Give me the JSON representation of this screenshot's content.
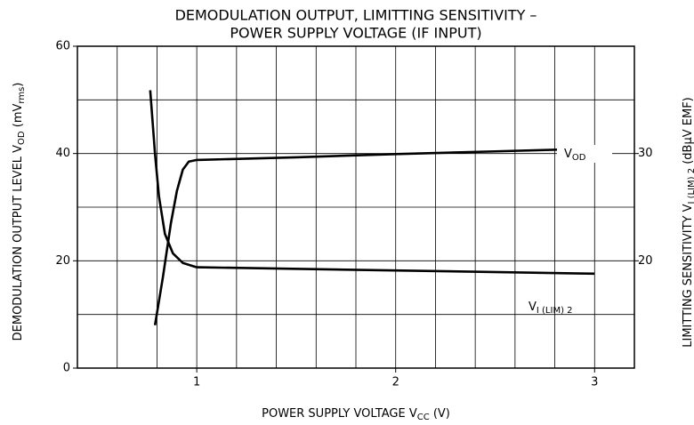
{
  "chart_data": {
    "type": "line",
    "title": [
      "DEMODULATION OUTPUT, LIMITTING SENSITIVITY  –",
      "POWER SUPPLY VOLTAGE (IF INPUT)"
    ],
    "xlabel": [
      "POWER SUPPLY VOLTAGE   V",
      "CC",
      "   (V)"
    ],
    "ylabel": [
      "DEMODULATION OUTPUT LEVEL   V",
      "OD",
      "   (mV",
      "rms",
      ")"
    ],
    "y2label": [
      "LIMITTING SENSITIVITY   V",
      "I (LIM) 2",
      "   (dBμV EMF)"
    ],
    "xlim": [
      0.4,
      3.2
    ],
    "xticks": [
      1,
      2,
      3
    ],
    "xgrid": [
      0.6,
      0.8,
      1.0,
      1.2,
      1.4,
      1.6,
      1.8,
      2.0,
      2.2,
      2.4,
      2.6,
      2.8,
      3.0
    ],
    "ylim": [
      0,
      60
    ],
    "yticks": [
      0,
      20,
      40,
      60
    ],
    "ygrid": [
      10,
      20,
      30,
      40,
      50
    ],
    "y2lim": [
      10,
      40
    ],
    "y2ticks": [
      20,
      30
    ],
    "grid": true,
    "series": [
      {
        "name": [
          "V",
          "OD"
        ],
        "color": "#000000",
        "x": [
          0.79,
          0.83,
          0.87,
          0.9,
          0.93,
          0.96,
          1.0,
          1.5,
          2.0,
          2.5,
          3.0
        ],
        "values": [
          8,
          17,
          27,
          33,
          37,
          38.5,
          38.8,
          39.3,
          39.9,
          40.4,
          40.9
        ]
      },
      {
        "name": [
          "V",
          "I (LIM) 2"
        ],
        "color": "#000000",
        "axis": "y2",
        "x": [
          0.766,
          0.79,
          0.81,
          0.84,
          0.88,
          0.93,
          1.0,
          2.0,
          3.0
        ],
        "values": [
          35.9,
          30,
          26,
          22.5,
          20.7,
          19.8,
          19.4,
          19.1,
          18.8
        ]
      }
    ]
  }
}
